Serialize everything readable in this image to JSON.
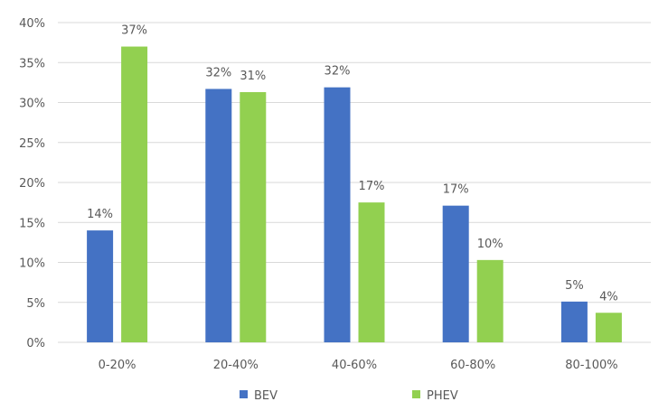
{
  "chart_data": {
    "type": "bar",
    "categories": [
      "0-20%",
      "20-40%",
      "40-60%",
      "60-80%",
      "80-100%"
    ],
    "series": [
      {
        "name": "BEV",
        "values": [
          14,
          31.7,
          31.9,
          17.1,
          5.1
        ],
        "labels": [
          "14%",
          "32%",
          "32%",
          "17%",
          "5%"
        ],
        "color": "#4472C4"
      },
      {
        "name": "PHEV",
        "values": [
          37,
          31.3,
          17.5,
          10.3,
          3.7
        ],
        "labels": [
          "37%",
          "31%",
          "17%",
          "10%",
          "4%"
        ],
        "color": "#92D050"
      }
    ],
    "ylim": [
      0,
      40
    ],
    "yticks": [
      0,
      5,
      10,
      15,
      20,
      25,
      30,
      35,
      40
    ],
    "ytick_labels": [
      "0%",
      "5%",
      "10%",
      "15%",
      "20%",
      "25%",
      "30%",
      "35%",
      "40%"
    ],
    "title": "",
    "xlabel": "",
    "ylabel": "",
    "grid": true,
    "legend_position": "bottom",
    "gridline_color": "#D9D9D9"
  }
}
